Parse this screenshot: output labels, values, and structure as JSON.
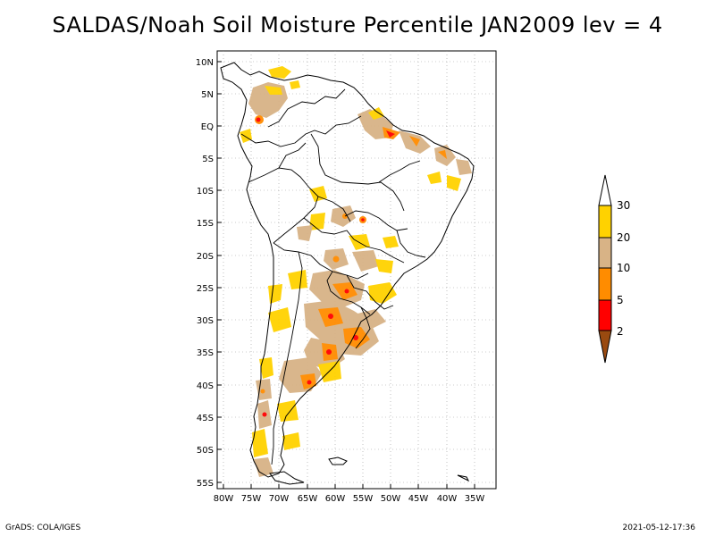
{
  "title": "SALDAS/Noah Soil Moisture Percentile JAN2009 lev = 4",
  "map": {
    "lat_ticks": [
      "10N",
      "5N",
      "EQ",
      "5S",
      "10S",
      "15S",
      "20S",
      "25S",
      "30S",
      "35S",
      "40S",
      "45S",
      "50S",
      "55S"
    ],
    "lon_ticks": [
      "80W",
      "75W",
      "70W",
      "65W",
      "60W",
      "55W",
      "50W",
      "45W",
      "40W",
      "35W"
    ],
    "lon_range": [
      -81,
      -32
    ],
    "lat_range": [
      -56,
      13
    ],
    "grid": "dotted"
  },
  "colorbar": {
    "labels": [
      "30",
      "20",
      "10",
      "5",
      "2"
    ],
    "colors": {
      "above_30": "#ffffff",
      "20_30": "#ffd200",
      "10_20": "#d8b386",
      "5_10": "#ff8c00",
      "2_5": "#ff0000",
      "below_2": "#9a4a10"
    }
  },
  "footer": {
    "left": "GrADS: COLA/IGES",
    "right": "2021-05-12-17:36"
  }
}
